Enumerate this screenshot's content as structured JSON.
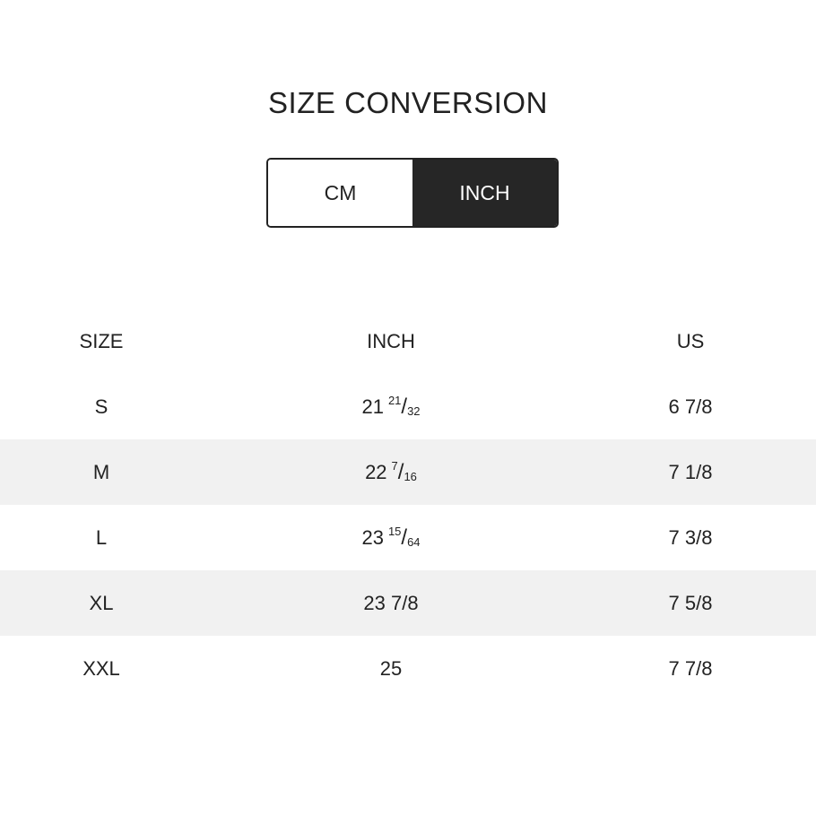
{
  "title": "SIZE CONVERSION",
  "toggle": {
    "options": [
      "CM",
      "INCH"
    ],
    "selected": "INCH"
  },
  "table": {
    "headers": [
      "SIZE",
      "INCH",
      "US"
    ],
    "rows": [
      {
        "size": "S",
        "inch_whole": "21",
        "inch_num": "21",
        "inch_den": "32",
        "us": "6 7/8"
      },
      {
        "size": "M",
        "inch_whole": "22",
        "inch_num": "7",
        "inch_den": "16",
        "us": "7 1/8"
      },
      {
        "size": "L",
        "inch_whole": "23",
        "inch_num": "15",
        "inch_den": "64",
        "us": "7 3/8"
      },
      {
        "size": "XL",
        "inch": "23 7/8",
        "us": "7 5/8"
      },
      {
        "size": "XXL",
        "inch": "25",
        "us": "7 7/8"
      }
    ]
  },
  "colors": {
    "selected_bg": "#262626",
    "stripe": "#f1f1f1",
    "text": "#222222"
  }
}
